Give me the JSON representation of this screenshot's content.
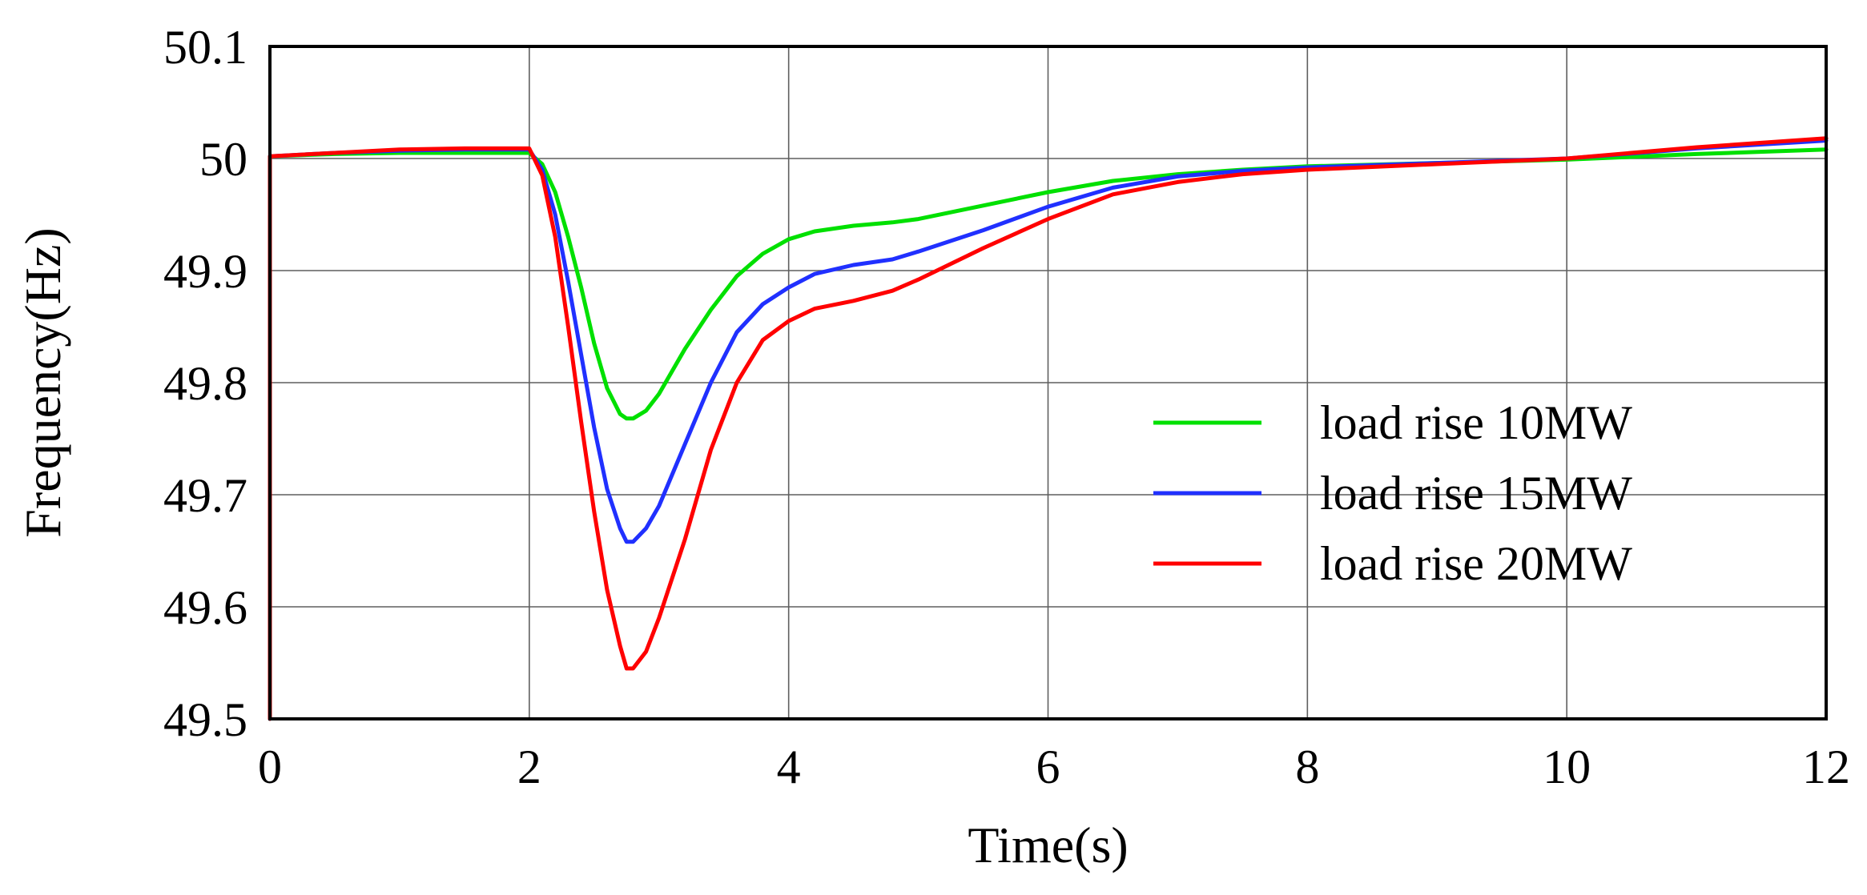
{
  "chart_data": {
    "type": "line",
    "title": "",
    "xlabel": "Time(s)",
    "ylabel": "Frequency(Hz)",
    "xlim": [
      0,
      12
    ],
    "ylim": [
      49.5,
      50.1
    ],
    "xticks": [
      0,
      2,
      4,
      6,
      8,
      10,
      12
    ],
    "yticks": [
      49.5,
      49.6,
      49.7,
      49.8,
      49.9,
      50,
      50.1
    ],
    "xtick_labels": [
      "0",
      "2",
      "4",
      "6",
      "8",
      "10",
      "12"
    ],
    "ytick_labels": [
      "49.5",
      "49.6",
      "49.7",
      "49.8",
      "49.9",
      "50",
      "50.1"
    ],
    "grid": true,
    "legend_position": "center-right",
    "series": [
      {
        "name": "load rise 10MW",
        "color": "#00e000",
        "points": [
          [
            0,
            49.5
          ],
          [
            0,
            50.002
          ],
          [
            0.5,
            50.004
          ],
          [
            1.0,
            50.005
          ],
          [
            1.5,
            50.005
          ],
          [
            2.0,
            50.005
          ],
          [
            2.1,
            49.995
          ],
          [
            2.2,
            49.97
          ],
          [
            2.3,
            49.93
          ],
          [
            2.4,
            49.885
          ],
          [
            2.5,
            49.835
          ],
          [
            2.6,
            49.795
          ],
          [
            2.7,
            49.772
          ],
          [
            2.75,
            49.768
          ],
          [
            2.8,
            49.768
          ],
          [
            2.9,
            49.775
          ],
          [
            3.0,
            49.79
          ],
          [
            3.2,
            49.83
          ],
          [
            3.4,
            49.865
          ],
          [
            3.6,
            49.895
          ],
          [
            3.8,
            49.915
          ],
          [
            4.0,
            49.928
          ],
          [
            4.2,
            49.935
          ],
          [
            4.5,
            49.94
          ],
          [
            4.8,
            49.943
          ],
          [
            5.0,
            49.946
          ],
          [
            5.5,
            49.958
          ],
          [
            6.0,
            49.97
          ],
          [
            6.5,
            49.98
          ],
          [
            7.0,
            49.986
          ],
          [
            7.5,
            49.99
          ],
          [
            8.0,
            49.993
          ],
          [
            9.0,
            49.996
          ],
          [
            10.0,
            49.999
          ],
          [
            11.0,
            50.004
          ],
          [
            12.0,
            50.008
          ]
        ]
      },
      {
        "name": "load rise 15MW",
        "color": "#2030ff",
        "points": [
          [
            0,
            49.5
          ],
          [
            0,
            50.002
          ],
          [
            0.5,
            50.005
          ],
          [
            1.0,
            50.007
          ],
          [
            1.5,
            50.008
          ],
          [
            2.0,
            50.008
          ],
          [
            2.1,
            49.99
          ],
          [
            2.2,
            49.95
          ],
          [
            2.3,
            49.89
          ],
          [
            2.4,
            49.825
          ],
          [
            2.5,
            49.76
          ],
          [
            2.6,
            49.705
          ],
          [
            2.7,
            49.67
          ],
          [
            2.75,
            49.658
          ],
          [
            2.8,
            49.658
          ],
          [
            2.9,
            49.67
          ],
          [
            3.0,
            49.69
          ],
          [
            3.2,
            49.745
          ],
          [
            3.4,
            49.8
          ],
          [
            3.6,
            49.845
          ],
          [
            3.8,
            49.87
          ],
          [
            4.0,
            49.885
          ],
          [
            4.2,
            49.897
          ],
          [
            4.5,
            49.905
          ],
          [
            4.8,
            49.91
          ],
          [
            5.0,
            49.917
          ],
          [
            5.5,
            49.936
          ],
          [
            6.0,
            49.957
          ],
          [
            6.5,
            49.974
          ],
          [
            7.0,
            49.984
          ],
          [
            7.5,
            49.989
          ],
          [
            8.0,
            49.992
          ],
          [
            9.0,
            49.996
          ],
          [
            10.0,
            50.0
          ],
          [
            11.0,
            50.009
          ],
          [
            12.0,
            50.016
          ]
        ]
      },
      {
        "name": "load rise 20MW",
        "color": "#ff0000",
        "points": [
          [
            0,
            49.5
          ],
          [
            0,
            50.002
          ],
          [
            0.5,
            50.005
          ],
          [
            1.0,
            50.008
          ],
          [
            1.5,
            50.009
          ],
          [
            2.0,
            50.009
          ],
          [
            2.1,
            49.985
          ],
          [
            2.2,
            49.93
          ],
          [
            2.3,
            49.85
          ],
          [
            2.4,
            49.765
          ],
          [
            2.5,
            49.685
          ],
          [
            2.6,
            49.615
          ],
          [
            2.7,
            49.565
          ],
          [
            2.75,
            49.545
          ],
          [
            2.8,
            49.545
          ],
          [
            2.9,
            49.56
          ],
          [
            3.0,
            49.59
          ],
          [
            3.2,
            49.66
          ],
          [
            3.4,
            49.74
          ],
          [
            3.6,
            49.8
          ],
          [
            3.8,
            49.838
          ],
          [
            4.0,
            49.855
          ],
          [
            4.2,
            49.866
          ],
          [
            4.5,
            49.873
          ],
          [
            4.8,
            49.882
          ],
          [
            5.0,
            49.892
          ],
          [
            5.5,
            49.92
          ],
          [
            6.0,
            49.946
          ],
          [
            6.5,
            49.968
          ],
          [
            7.0,
            49.979
          ],
          [
            7.5,
            49.986
          ],
          [
            8.0,
            49.99
          ],
          [
            9.0,
            49.995
          ],
          [
            10.0,
            50.0
          ],
          [
            11.0,
            50.01
          ],
          [
            12.0,
            50.018
          ]
        ]
      }
    ]
  }
}
